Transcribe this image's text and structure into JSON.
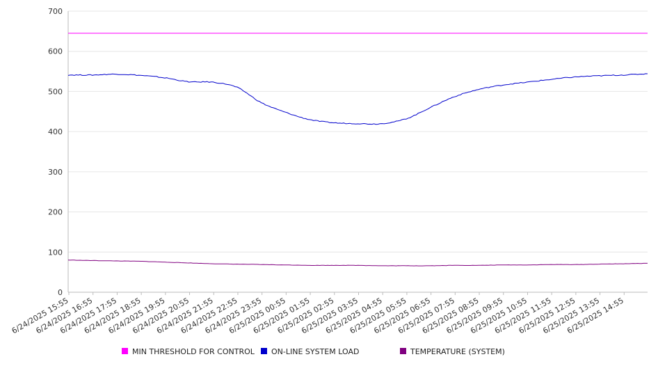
{
  "chart_data": {
    "type": "line",
    "ylim": [
      0,
      700
    ],
    "y_ticks": [
      "0",
      "100",
      "200",
      "300",
      "400",
      "500",
      "600",
      "700"
    ],
    "x_tick_labels": [
      "6/24/2025 15:55",
      "6/24/2025 16:55",
      "6/24/2025 17:55",
      "6/24/2025 18:55",
      "6/24/2025 19:55",
      "6/24/2025 20:55",
      "6/24/2025 21:55",
      "6/24/2025 22:55",
      "6/24/2025 23:55",
      "6/25/2025 00:55",
      "6/25/2025 01:55",
      "6/25/2025 02:55",
      "6/25/2025 03:55",
      "6/25/2025 04:55",
      "6/25/2025 05:55",
      "6/25/2025 06:55",
      "6/25/2025 07:55",
      "6/25/2025 08:55",
      "6/25/2025 09:55",
      "6/25/2025 10:55",
      "6/25/2025 11:55",
      "6/25/2025 12:55",
      "6/25/2025 13:55",
      "6/25/2025 14:55"
    ],
    "x_end": "6/25/2025 15:55",
    "grid": true,
    "legend_position": "bottom",
    "series": [
      {
        "name": "MIN THRESHOLD FOR CONTROL",
        "color": "#ff00ff",
        "values": [
          645,
          645,
          645,
          645,
          645,
          645,
          645,
          645,
          645,
          645,
          645,
          645,
          645,
          645,
          645,
          645,
          645,
          645,
          645,
          645,
          645,
          645,
          645,
          645,
          645
        ]
      },
      {
        "name": "ON-LINE SYSTEM LOAD",
        "color": "#0000cc",
        "values": [
          541,
          541,
          543,
          540,
          534,
          524,
          523,
          510,
          472,
          448,
          430,
          422,
          420,
          420,
          432,
          460,
          487,
          505,
          516,
          523,
          530,
          536,
          539,
          541,
          544
        ]
      },
      {
        "name": "TEMPERATURE (SYSTEM)",
        "color": "#800080",
        "values": [
          80,
          79,
          78,
          77,
          75,
          73,
          71,
          70,
          69,
          68,
          67,
          67,
          67,
          66,
          66,
          66,
          67,
          67,
          68,
          68,
          69,
          69,
          70,
          71,
          72
        ]
      }
    ]
  }
}
